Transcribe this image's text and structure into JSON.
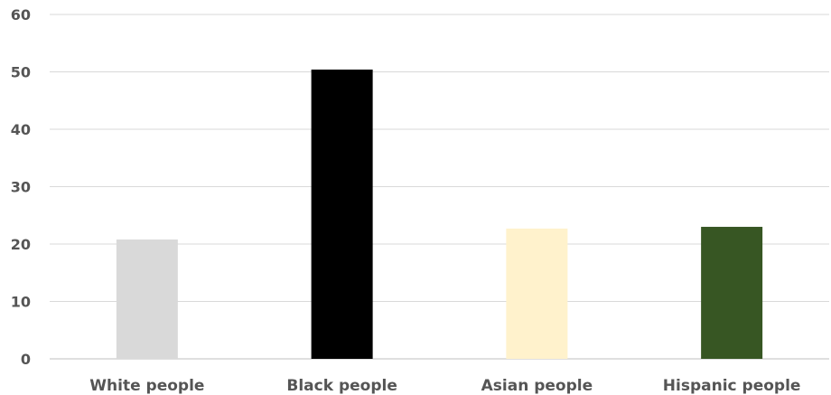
{
  "chart_data": {
    "type": "bar",
    "title": "",
    "xlabel": "",
    "ylabel": "",
    "categories": [
      "White people",
      "Black people",
      "Asian people",
      "Hispanic people"
    ],
    "values": [
      20.8,
      50.4,
      22.7,
      23.0
    ],
    "colors": [
      "#d9d9d9",
      "#000000",
      "#fff2cc",
      "#375623"
    ],
    "ylim": [
      0,
      60
    ],
    "yticks": [
      0,
      10,
      20,
      30,
      40,
      50,
      60
    ],
    "grid": true,
    "legend": "none"
  }
}
